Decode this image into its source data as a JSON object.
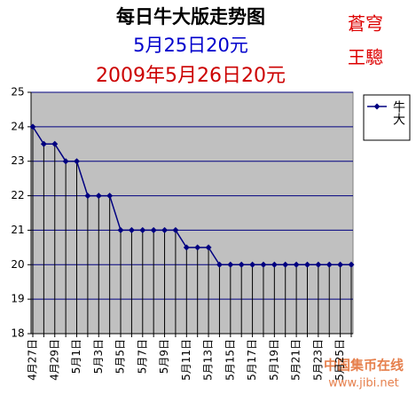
{
  "chart_data": {
    "type": "line",
    "title": "每日牛大版走势图",
    "subtitle": "5月25日20元",
    "subtitle2": "2009年5月26日20元",
    "annotations": [
      "蒼穹",
      "王驄",
      "中国集币在线",
      "www.jibi.net"
    ],
    "categories": [
      "4月27日",
      null,
      "4月29日",
      null,
      "5月1日",
      null,
      "5月3日",
      null,
      "5月5日",
      null,
      "5月7日",
      null,
      "5月9日",
      null,
      "5月11日",
      null,
      "5月13日",
      null,
      "5月15日",
      null,
      "5月17日",
      null,
      "5月19日",
      null,
      "5月21日",
      null,
      "5月23日",
      null,
      "5月25日",
      null
    ],
    "series": [
      {
        "name": "牛大",
        "color": "#000080",
        "values": [
          24,
          23.5,
          23.5,
          23,
          23,
          22,
          22,
          22,
          21,
          21,
          21,
          21,
          21,
          21,
          20.5,
          20.5,
          20.5,
          20,
          20,
          20,
          20,
          20,
          20,
          20,
          20,
          20,
          20,
          20,
          20,
          20
        ]
      }
    ],
    "ylim": [
      18,
      25
    ],
    "yticks": [
      18,
      19,
      20,
      21,
      22,
      23,
      24,
      25
    ],
    "grid": true,
    "legend": "right",
    "plot_background": "#c0c0c0"
  }
}
